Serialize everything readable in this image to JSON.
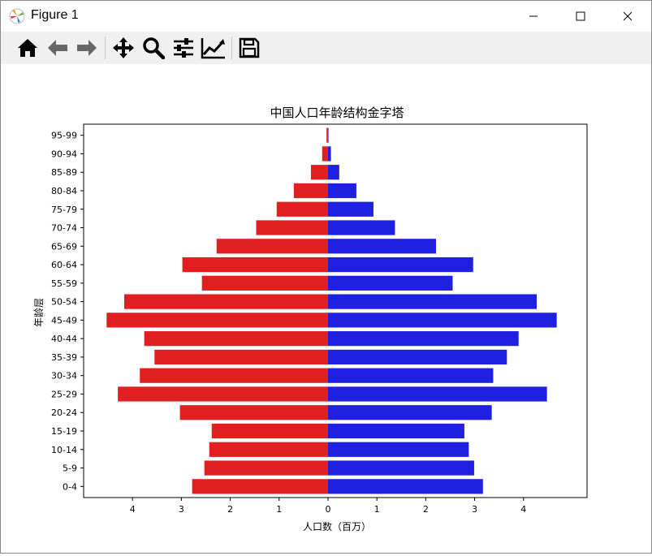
{
  "window": {
    "title": "Figure 1"
  },
  "toolbar": {
    "buttons": [
      {
        "name": "home-icon"
      },
      {
        "name": "back-arrow-icon"
      },
      {
        "name": "forward-arrow-icon"
      },
      {
        "name": "pan-icon"
      },
      {
        "name": "zoom-icon"
      },
      {
        "name": "subplots-config-icon"
      },
      {
        "name": "edit-axis-icon"
      },
      {
        "name": "save-icon"
      }
    ]
  },
  "chart_data": {
    "type": "bar",
    "orientation": "horizontal",
    "title": "中国人口年龄结构金字塔",
    "xlabel": "人口数（百万）",
    "ylabel": "年龄层",
    "categories": [
      "0-4",
      "5-9",
      "10-14",
      "15-19",
      "20-24",
      "25-29",
      "30-34",
      "35-39",
      "40-44",
      "45-49",
      "50-54",
      "55-59",
      "60-64",
      "65-69",
      "70-74",
      "75-79",
      "80-84",
      "85-89",
      "90-94",
      "95-99"
    ],
    "series": [
      {
        "side": "left",
        "color": "#e02020",
        "values": [
          2.78,
          2.53,
          2.43,
          2.38,
          3.03,
          4.3,
          3.85,
          3.55,
          3.76,
          4.53,
          4.17,
          2.58,
          2.98,
          2.28,
          1.47,
          1.05,
          0.7,
          0.35,
          0.12,
          0.03
        ]
      },
      {
        "side": "right",
        "color": "#2020e0",
        "values": [
          3.17,
          2.99,
          2.88,
          2.79,
          3.35,
          4.48,
          3.38,
          3.66,
          3.9,
          4.68,
          4.27,
          2.55,
          2.97,
          2.21,
          1.37,
          0.93,
          0.58,
          0.23,
          0.06,
          0.01
        ]
      }
    ],
    "xlim": [
      -5.0,
      5.3
    ],
    "xticks": [
      -4,
      -3,
      -2,
      -1,
      0,
      1,
      2,
      3,
      4
    ],
    "xtick_labels": [
      "4",
      "3",
      "2",
      "1",
      "0",
      "1",
      "2",
      "3",
      "4"
    ],
    "grid": false,
    "legend": false
  }
}
